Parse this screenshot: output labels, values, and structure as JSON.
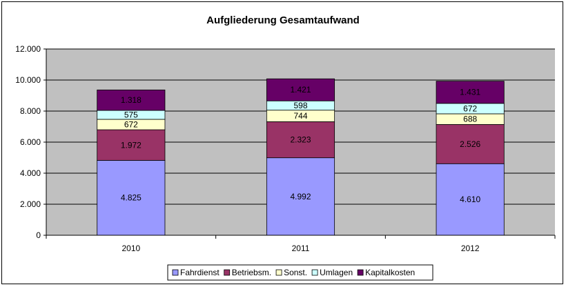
{
  "chart_data": {
    "type": "bar",
    "stacked": true,
    "title": "Aufgliederung Gesamtaufwand",
    "xlabel": "",
    "ylabel": "",
    "categories": [
      "2010",
      "2011",
      "2012"
    ],
    "ylim": [
      0,
      12000
    ],
    "yticks": [
      0,
      2000,
      4000,
      6000,
      8000,
      10000,
      12000
    ],
    "ytick_labels": [
      "0",
      "2.000",
      "4.000",
      "6.000",
      "8.000",
      "10.000",
      "12.000"
    ],
    "grid": true,
    "legend_position": "bottom",
    "plot_background": "#c0c0c0",
    "series": [
      {
        "name": "Fahrdienst",
        "color": "#9999ff",
        "values": [
          4825,
          4992,
          4610
        ],
        "labels": [
          "4.825",
          "4.992",
          "4.610"
        ]
      },
      {
        "name": "Betriebsm.",
        "color": "#993366",
        "values": [
          1972,
          2323,
          2526
        ],
        "labels": [
          "1.972",
          "2.323",
          "2.526"
        ]
      },
      {
        "name": "Sonst.",
        "color": "#ffffcc",
        "values": [
          672,
          744,
          688
        ],
        "labels": [
          "672",
          "744",
          "688"
        ]
      },
      {
        "name": "Umlagen",
        "color": "#ccffff",
        "values": [
          575,
          598,
          672
        ],
        "labels": [
          "575",
          "598",
          "672"
        ]
      },
      {
        "name": "Kapitalkosten",
        "color": "#660066",
        "values": [
          1318,
          1421,
          1431
        ],
        "labels": [
          "1.318",
          "1.421",
          "1.431"
        ]
      }
    ]
  }
}
